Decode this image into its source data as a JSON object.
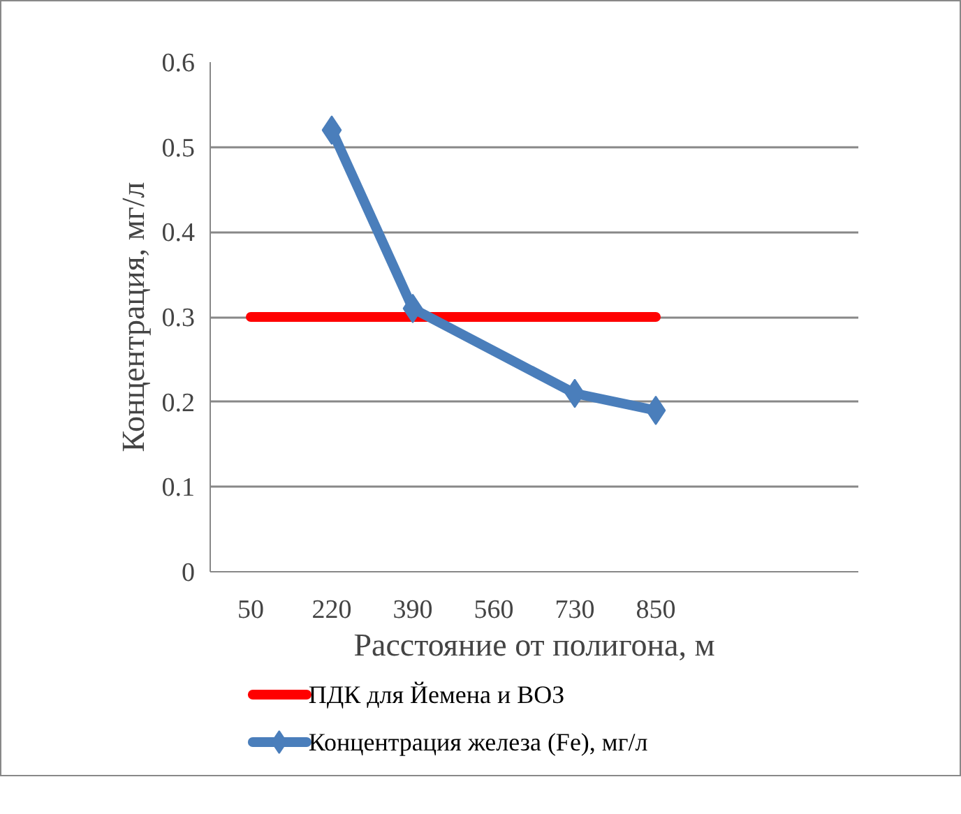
{
  "chart_data": {
    "type": "line",
    "xlabel": "Расстояние от полигона, м",
    "ylabel": "Концентрация, мг/л",
    "categories": [
      "50",
      "220",
      "390",
      "560",
      "730",
      "850",
      null,
      null
    ],
    "series": [
      {
        "name": "ПДК для Йемена и ВОЗ",
        "color": "#ff0000",
        "marker": "none",
        "values": [
          0.3,
          0.3,
          0.3,
          0.3,
          0.3,
          0.3,
          null,
          null
        ]
      },
      {
        "name": "Концентрация  железа (Fe), мг/л",
        "color": "#4a7ebb",
        "marker": "diamond",
        "values": [
          null,
          0.52,
          0.31,
          null,
          0.21,
          0.19,
          null,
          null
        ]
      }
    ],
    "ylim": [
      0,
      0.6
    ],
    "yticks": [
      0,
      0.1,
      0.2,
      0.3,
      0.4,
      0.5,
      0.6
    ],
    "grid": "y",
    "legend": "bottom"
  }
}
